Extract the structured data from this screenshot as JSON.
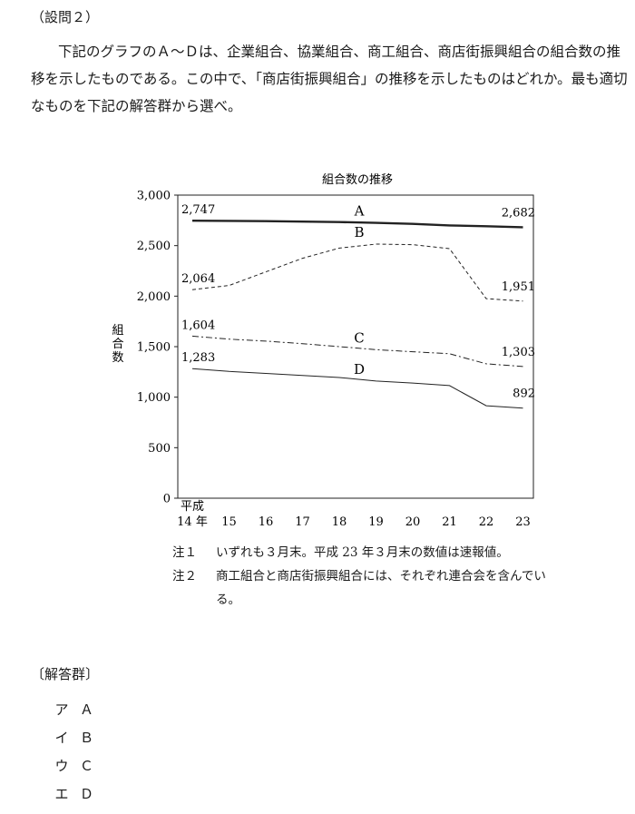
{
  "question": {
    "label": "（設問２）",
    "text": "下記のグラフのＡ～Ｄは、企業組合、協業組合、商工組合、商店街振興組合の組合数の推移を示したものである。この中で、「商店街振興組合」の推移を示したものはどれか。最も適切なものを下記の解答群から選べ。"
  },
  "chart_data": {
    "type": "line",
    "title": "組合数の推移",
    "ylabel": "組合数",
    "xlabel_prefix": "平成",
    "x_first_label": "14 年",
    "categories": [
      "14",
      "15",
      "16",
      "17",
      "18",
      "19",
      "20",
      "21",
      "22",
      "23"
    ],
    "y_ticks": [
      "3,000",
      "2,500",
      "2,000",
      "1,500",
      "1,000",
      "500",
      "0"
    ],
    "ylim": [
      0,
      3000
    ],
    "grid": false,
    "series": [
      {
        "name": "A",
        "style": "solid-thick",
        "values": [
          2747,
          2745,
          2742,
          2738,
          2733,
          2725,
          2715,
          2700,
          2692,
          2682
        ],
        "start_label": "2,747",
        "end_label": "2,682"
      },
      {
        "name": "B",
        "style": "dashed",
        "values": [
          2064,
          2105,
          2240,
          2375,
          2475,
          2515,
          2510,
          2470,
          1975,
          1951
        ],
        "start_label": "2,064",
        "end_label": "1,951"
      },
      {
        "name": "C",
        "style": "dash-dot",
        "values": [
          1604,
          1575,
          1555,
          1530,
          1500,
          1470,
          1450,
          1430,
          1330,
          1303
        ],
        "start_label": "1,604",
        "end_label": "1,303"
      },
      {
        "name": "D",
        "style": "solid-thin",
        "values": [
          1283,
          1255,
          1235,
          1215,
          1195,
          1160,
          1140,
          1115,
          915,
          892
        ],
        "start_label": "1,283",
        "end_label": "892"
      }
    ]
  },
  "notes": [
    {
      "tag": "注１",
      "text": "いずれも３月末。平成 23 年３月末の数値は速報値。"
    },
    {
      "tag": "注２",
      "text": "商工組合と商店街振興組合には、それぞれ連合会を含んでいる。"
    }
  ],
  "choices": {
    "heading": "〔解答群〕",
    "items": [
      {
        "kana": "ア",
        "label": "Ａ"
      },
      {
        "kana": "イ",
        "label": "Ｂ"
      },
      {
        "kana": "ウ",
        "label": "Ｃ"
      },
      {
        "kana": "エ",
        "label": "Ｄ"
      }
    ]
  }
}
